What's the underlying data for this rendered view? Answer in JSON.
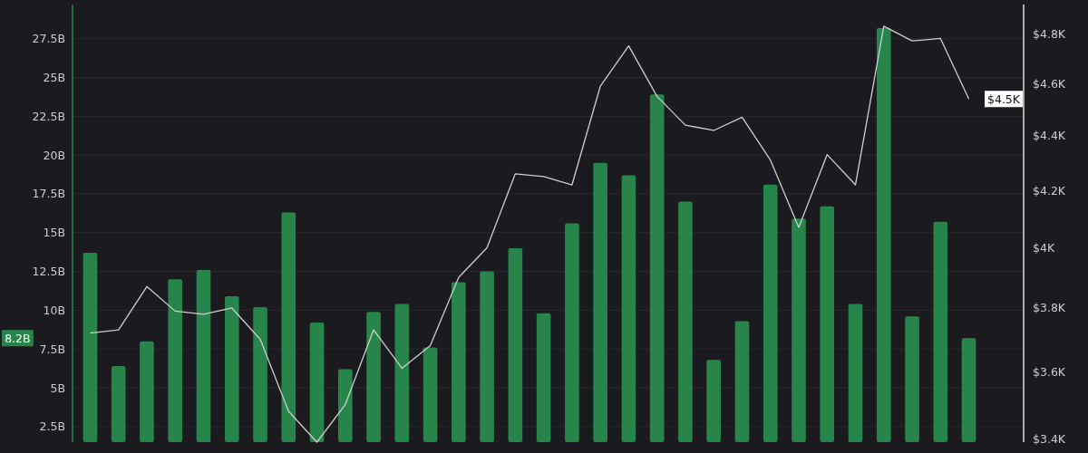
{
  "chart_data": {
    "type": "bar",
    "categories": [
      null,
      null,
      null,
      null,
      null,
      null,
      null,
      null,
      null,
      null,
      null,
      null,
      null,
      null,
      null,
      null,
      null,
      null,
      null,
      null,
      null,
      null,
      null,
      null,
      null,
      null,
      null,
      null,
      null,
      null,
      null,
      null
    ],
    "series": [
      {
        "color": "#27854b",
        "values": [
          13.7,
          6.4,
          8.0,
          12.0,
          12.6,
          10.9,
          10.2,
          16.3,
          9.2,
          6.2,
          9.9,
          10.4,
          7.6,
          11.8,
          12.5,
          14.0,
          9.8,
          15.6,
          19.5,
          18.7,
          23.9,
          17.0,
          6.8,
          9.3,
          18.1,
          15.9,
          16.7,
          10.4,
          28.2,
          9.6,
          15.7,
          8.2
        ]
      },
      {
        "type": "line",
        "axis": "y2",
        "color": "#cfcfcf",
        "values": [
          3720,
          3730,
          3870,
          3790,
          3780,
          3800,
          3700,
          3480,
          3390,
          3500,
          3730,
          3610,
          3680,
          3900,
          4000,
          4260,
          4250,
          4220,
          4590,
          4750,
          4550,
          4440,
          4420,
          4470,
          4310,
          4070,
          4330,
          4220,
          4830,
          4770,
          4780,
          4540
        ]
      }
    ],
    "ylim": [
      1.5,
      29.7
    ],
    "yticks": [
      {
        "value": 2.5,
        "label": "2.5B"
      },
      {
        "value": 5,
        "label": "5B"
      },
      {
        "value": 7.5,
        "label": "7.5B"
      },
      {
        "value": 10,
        "label": "10B"
      },
      {
        "value": 12.5,
        "label": "12.5B"
      },
      {
        "value": 15,
        "label": "15B"
      },
      {
        "value": 17.5,
        "label": "17.5B"
      },
      {
        "value": 20,
        "label": "20B"
      },
      {
        "value": 22.5,
        "label": "22.5B"
      },
      {
        "value": 25,
        "label": "25B"
      },
      {
        "value": 27.5,
        "label": "27.5B"
      }
    ],
    "y2lim": [
      3390,
      4920
    ],
    "y2ticks": [
      {
        "value": 3400,
        "label": "$3.4K"
      },
      {
        "value": 3600,
        "label": "$3.6K"
      },
      {
        "value": 3800,
        "label": "$3.8K"
      },
      {
        "value": 4000,
        "label": "$4K"
      },
      {
        "value": 4200,
        "label": "$4.2K"
      },
      {
        "value": 4400,
        "label": "$4.4K"
      },
      {
        "value": 4600,
        "label": "$4.6K"
      },
      {
        "value": 4800,
        "label": "$4.8K"
      }
    ],
    "log": "y2",
    "grid": "y",
    "annotations": [
      "8.2B",
      "$4.5K"
    ]
  }
}
